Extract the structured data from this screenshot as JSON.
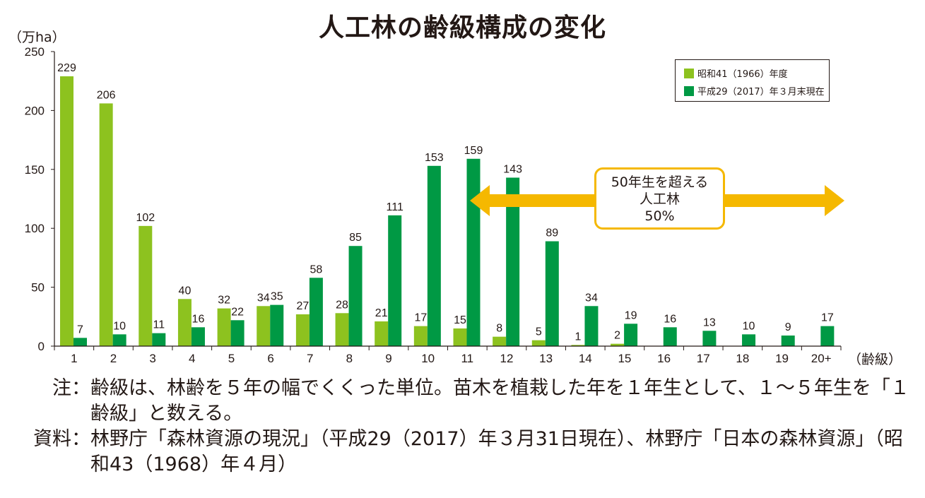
{
  "title": "人工林の齢級構成の変化",
  "y_unit_label": "（万ha）",
  "x_unit_label": "（齢級）",
  "legend": [
    {
      "label": "昭和41（1966）年度",
      "color": "#8dc21f"
    },
    {
      "label": "平成29（2017）年３月末現在",
      "color": "#009944"
    }
  ],
  "callout": {
    "line1": "50年生を超える",
    "line2": "人工林",
    "line3": "50%",
    "color": "#f5b800"
  },
  "notes": [
    {
      "label": "注：",
      "text": "齢級は、林齢を５年の幅でくくった単位。苗木を植栽した年を１年生として、１〜５年生を「１齢級」と数える。"
    },
    {
      "label": "資料：",
      "text": "林野庁「森林資源の現況」（平成29（2017）年３月31日現在）、林野庁「日本の森林資源」（昭和43（1968）年４月）"
    }
  ],
  "chart_data": {
    "type": "bar",
    "title": "人工林の齢級構成の変化",
    "ylabel": "（万ha）",
    "xlabel": "（齢級）",
    "ylim": [
      0,
      250
    ],
    "yticks": [
      0,
      50,
      100,
      150,
      200,
      250
    ],
    "grid": false,
    "legend_position": "top-right",
    "categories": [
      "1",
      "2",
      "3",
      "4",
      "5",
      "6",
      "7",
      "8",
      "9",
      "10",
      "11",
      "12",
      "13",
      "14",
      "15",
      "16",
      "17",
      "18",
      "19",
      "20+"
    ],
    "series": [
      {
        "name": "昭和41（1966）年度",
        "color": "#8dc21f",
        "values": [
          229,
          206,
          102,
          40,
          32,
          34,
          27,
          28,
          21,
          17,
          15,
          8,
          5,
          1,
          2,
          null,
          null,
          null,
          null,
          null
        ]
      },
      {
        "name": "平成29（2017）年３月末現在",
        "color": "#009944",
        "values": [
          7,
          10,
          11,
          16,
          22,
          35,
          58,
          85,
          111,
          153,
          159,
          143,
          89,
          34,
          19,
          16,
          13,
          10,
          9,
          17
        ]
      }
    ]
  }
}
